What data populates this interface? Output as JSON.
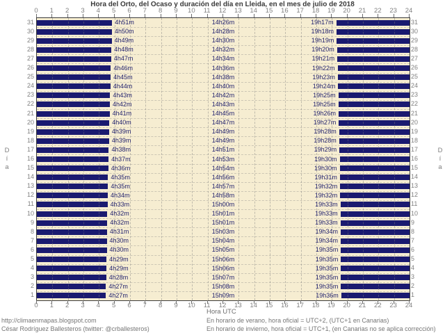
{
  "title": "Hora del Orto, del Ocaso y duración del día en Lleida, en el mes de julio de 2018",
  "axis": {
    "xlabel": "Hora UTC",
    "day_axis_label": "Día",
    "hour_ticks": [
      0,
      1,
      2,
      3,
      4,
      5,
      6,
      7,
      8,
      9,
      10,
      11,
      12,
      13,
      14,
      15,
      16,
      17,
      18,
      19,
      20,
      21,
      22,
      23,
      24
    ]
  },
  "footer": {
    "line1": "http://climaenmapas.blogspot.com",
    "line2": "César Rodríguez Ballesteros (twitter: @crballesteros)",
    "note1": "En horario de verano, hora oficial = UTC+2, (UTC+1 en Canarias)",
    "note2": "En horario de invierno, hora oficial = UTC+1, (en Canarias no se aplica corrección)"
  },
  "colors": {
    "bar_night": "#1A1A70",
    "plot_background": "#F6EDD1",
    "axis_text": "#808080",
    "time_label_text": "#22226E",
    "grid": "#7d7d7d"
  },
  "chart_data": {
    "type": "bar",
    "orientation": "horizontal-span",
    "title": "Hora del Orto, del Ocaso y duración del día en Lleida, en el mes de julio de 2018",
    "xlabel": "Hora UTC",
    "ylabel": "Día",
    "x_range_hours": [
      0,
      24
    ],
    "grid": true,
    "legend": false,
    "description": "Dark bars span night hours (midnight to sunrise, sunset to midnight) for each day of July 2018; labels give sunrise time, daylight duration, sunset time (UTC).",
    "days": [
      {
        "day": 1,
        "sunrise": "4h27m",
        "duration": "15h09m",
        "sunset": "19h36m"
      },
      {
        "day": 2,
        "sunrise": "4h27m",
        "duration": "15h08m",
        "sunset": "19h35m"
      },
      {
        "day": 3,
        "sunrise": "4h28m",
        "duration": "15h07m",
        "sunset": "19h35m"
      },
      {
        "day": 4,
        "sunrise": "4h29m",
        "duration": "15h06m",
        "sunset": "19h35m"
      },
      {
        "day": 5,
        "sunrise": "4h29m",
        "duration": "15h06m",
        "sunset": "19h35m"
      },
      {
        "day": 6,
        "sunrise": "4h30m",
        "duration": "15h05m",
        "sunset": "19h35m"
      },
      {
        "day": 7,
        "sunrise": "4h30m",
        "duration": "15h04m",
        "sunset": "19h34m"
      },
      {
        "day": 8,
        "sunrise": "4h31m",
        "duration": "15h03m",
        "sunset": "19h34m"
      },
      {
        "day": 9,
        "sunrise": "4h32m",
        "duration": "15h01m",
        "sunset": "19h33m"
      },
      {
        "day": 10,
        "sunrise": "4h32m",
        "duration": "15h01m",
        "sunset": "19h33m"
      },
      {
        "day": 11,
        "sunrise": "4h33m",
        "duration": "15h00m",
        "sunset": "19h33m"
      },
      {
        "day": 12,
        "sunrise": "4h34m",
        "duration": "14h58m",
        "sunset": "19h32m"
      },
      {
        "day": 13,
        "sunrise": "4h35m",
        "duration": "14h57m",
        "sunset": "19h32m"
      },
      {
        "day": 14,
        "sunrise": "4h35m",
        "duration": "14h56m",
        "sunset": "19h31m"
      },
      {
        "day": 15,
        "sunrise": "4h36m",
        "duration": "14h54m",
        "sunset": "19h30m"
      },
      {
        "day": 16,
        "sunrise": "4h37m",
        "duration": "14h53m",
        "sunset": "19h30m"
      },
      {
        "day": 17,
        "sunrise": "4h38m",
        "duration": "14h51m",
        "sunset": "19h29m"
      },
      {
        "day": 18,
        "sunrise": "4h39m",
        "duration": "14h49m",
        "sunset": "19h28m"
      },
      {
        "day": 19,
        "sunrise": "4h39m",
        "duration": "14h49m",
        "sunset": "19h28m"
      },
      {
        "day": 20,
        "sunrise": "4h40m",
        "duration": "14h47m",
        "sunset": "19h27m"
      },
      {
        "day": 21,
        "sunrise": "4h41m",
        "duration": "14h45m",
        "sunset": "19h26m"
      },
      {
        "day": 22,
        "sunrise": "4h42m",
        "duration": "14h43m",
        "sunset": "19h25m"
      },
      {
        "day": 23,
        "sunrise": "4h43m",
        "duration": "14h42m",
        "sunset": "19h25m"
      },
      {
        "day": 24,
        "sunrise": "4h44m",
        "duration": "14h40m",
        "sunset": "19h24m"
      },
      {
        "day": 25,
        "sunrise": "4h45m",
        "duration": "14h38m",
        "sunset": "19h23m"
      },
      {
        "day": 26,
        "sunrise": "4h46m",
        "duration": "14h36m",
        "sunset": "19h22m"
      },
      {
        "day": 27,
        "sunrise": "4h47m",
        "duration": "14h34m",
        "sunset": "19h21m"
      },
      {
        "day": 28,
        "sunrise": "4h48m",
        "duration": "14h32m",
        "sunset": "19h20m"
      },
      {
        "day": 29,
        "sunrise": "4h49m",
        "duration": "14h30m",
        "sunset": "19h19m"
      },
      {
        "day": 30,
        "sunrise": "4h50m",
        "duration": "14h28m",
        "sunset": "19h18m"
      },
      {
        "day": 31,
        "sunrise": "4h51m",
        "duration": "14h26m",
        "sunset": "19h17m"
      }
    ]
  }
}
